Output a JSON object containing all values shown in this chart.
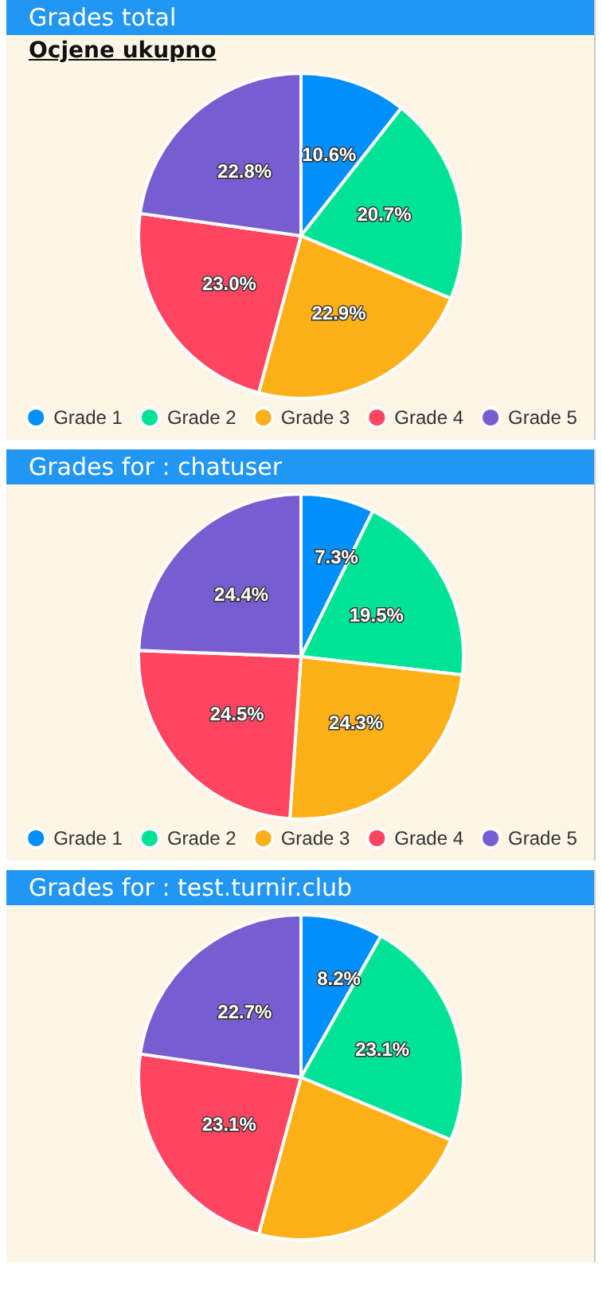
{
  "chart_data": [
    {
      "type": "pie",
      "title": "Grades total",
      "subtitle": "Ocjene ukupno",
      "categories": [
        "Grade 1",
        "Grade 2",
        "Grade 3",
        "Grade 4",
        "Grade 5"
      ],
      "values": [
        10.6,
        20.7,
        22.9,
        23.0,
        22.8
      ],
      "value_labels": [
        "10.6%",
        "20.7%",
        "22.9%",
        "23.0%",
        "22.8%"
      ],
      "colors": [
        "#008ffb",
        "#00e396",
        "#feb019",
        "#ff4560",
        "#775dd0"
      ],
      "legend": "bottom"
    },
    {
      "type": "pie",
      "title": "Grades for : chatuser",
      "categories": [
        "Grade 1",
        "Grade 2",
        "Grade 3",
        "Grade 4",
        "Grade 5"
      ],
      "values": [
        7.3,
        19.5,
        24.3,
        24.5,
        24.4
      ],
      "value_labels": [
        "7.3%",
        "19.5%",
        "24.3%",
        "24.5%",
        "24.4%"
      ],
      "colors": [
        "#008ffb",
        "#00e396",
        "#feb019",
        "#ff4560",
        "#775dd0"
      ],
      "legend": "bottom"
    },
    {
      "type": "pie",
      "title": "Grades for : test.turnir.club",
      "categories": [
        null,
        null,
        null,
        null,
        null
      ],
      "values": [
        8.2,
        23.1,
        22.9,
        23.1,
        22.7
      ],
      "value_labels": [
        "8.2%",
        "23.1%",
        null,
        "23.1%",
        "22.7%"
      ],
      "colors": [
        "#008ffb",
        "#00e396",
        "#feb019",
        "#ff4560",
        "#775dd0"
      ]
    }
  ]
}
